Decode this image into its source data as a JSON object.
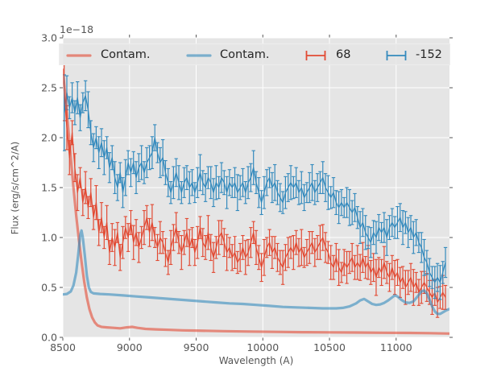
{
  "figure": {
    "plot_bg": "#e5e5e5",
    "grid_color": "#ffffff",
    "tick_color": "#555555",
    "text_color": "#555555",
    "legend_text_color": "#262626"
  },
  "axes": {
    "xlabel": "Wavelength (A)",
    "ylabel": "Flux (erg/s/cm^2/A)",
    "offset_label": "1e−18",
    "x_tick_labels": [
      "8500",
      "9000",
      "9500",
      "10000",
      "10500",
      "11000"
    ],
    "y_tick_labels": [
      "0.0",
      "0.5",
      "1.0",
      "1.5",
      "2.0",
      "2.5",
      "3.0"
    ]
  },
  "legend": {
    "items": [
      {
        "label": "Contam.",
        "kind": "line",
        "color": "#E24A33"
      },
      {
        "label": "Contam.",
        "kind": "line",
        "color": "#348ABD"
      },
      {
        "label": "68",
        "kind": "errorbar",
        "color": "#E24A33"
      },
      {
        "label": "-152",
        "kind": "errorbar",
        "color": "#348ABD"
      }
    ]
  },
  "chart_data": {
    "type": "line",
    "title": "",
    "xlabel": "Wavelength (A)",
    "ylabel": "Flux (erg/s/cm^2/A)",
    "y_offset_factor": "1e-18",
    "xlim": [
      8500,
      11400
    ],
    "ylim": [
      0,
      3
    ],
    "x_ticks": [
      8500,
      9000,
      9500,
      10000,
      10500,
      11000
    ],
    "y_ticks": [
      0.0,
      0.5,
      1.0,
      1.5,
      2.0,
      2.5,
      3.0
    ],
    "grid": true,
    "legend_position": "upper center, horizontal row",
    "series": [
      {
        "name": "Contam.",
        "kind": "line",
        "color": "#E24A33",
        "opacity": 0.6,
        "line_width": 3.2,
        "points": [
          [
            8500,
            2.68
          ],
          [
            8520,
            2.4
          ],
          [
            8540,
            2.1
          ],
          [
            8560,
            1.8
          ],
          [
            8580,
            1.5
          ],
          [
            8600,
            1.22
          ],
          [
            8620,
            0.98
          ],
          [
            8640,
            0.76
          ],
          [
            8660,
            0.56
          ],
          [
            8680,
            0.4
          ],
          [
            8700,
            0.28
          ],
          [
            8720,
            0.2
          ],
          [
            8740,
            0.15
          ],
          [
            8760,
            0.12
          ],
          [
            8790,
            0.105
          ],
          [
            8830,
            0.1
          ],
          [
            8880,
            0.095
          ],
          [
            8930,
            0.09
          ],
          [
            8980,
            0.1
          ],
          [
            9020,
            0.105
          ],
          [
            9060,
            0.095
          ],
          [
            9120,
            0.085
          ],
          [
            9200,
            0.08
          ],
          [
            9300,
            0.075
          ],
          [
            9400,
            0.07
          ],
          [
            9500,
            0.068
          ],
          [
            9700,
            0.062
          ],
          [
            9900,
            0.058
          ],
          [
            10100,
            0.055
          ],
          [
            10300,
            0.052
          ],
          [
            10500,
            0.05
          ],
          [
            10700,
            0.048
          ],
          [
            10900,
            0.046
          ],
          [
            11100,
            0.044
          ],
          [
            11250,
            0.042
          ],
          [
            11400,
            0.038
          ]
        ]
      },
      {
        "name": "Contam.",
        "kind": "line",
        "color": "#348ABD",
        "opacity": 0.6,
        "line_width": 3.2,
        "points": [
          [
            8500,
            0.43
          ],
          [
            8530,
            0.435
          ],
          [
            8560,
            0.46
          ],
          [
            8580,
            0.52
          ],
          [
            8600,
            0.65
          ],
          [
            8615,
            0.82
          ],
          [
            8630,
            1.02
          ],
          [
            8640,
            1.07
          ],
          [
            8650,
            1.0
          ],
          [
            8665,
            0.82
          ],
          [
            8680,
            0.62
          ],
          [
            8695,
            0.5
          ],
          [
            8710,
            0.455
          ],
          [
            8730,
            0.44
          ],
          [
            8780,
            0.435
          ],
          [
            8850,
            0.43
          ],
          [
            8950,
            0.42
          ],
          [
            9050,
            0.41
          ],
          [
            9150,
            0.4
          ],
          [
            9250,
            0.39
          ],
          [
            9350,
            0.38
          ],
          [
            9450,
            0.37
          ],
          [
            9550,
            0.36
          ],
          [
            9650,
            0.35
          ],
          [
            9750,
            0.34
          ],
          [
            9850,
            0.335
          ],
          [
            9950,
            0.325
          ],
          [
            10050,
            0.315
          ],
          [
            10150,
            0.305
          ],
          [
            10250,
            0.3
          ],
          [
            10350,
            0.295
          ],
          [
            10450,
            0.29
          ],
          [
            10550,
            0.29
          ],
          [
            10600,
            0.295
          ],
          [
            10650,
            0.31
          ],
          [
            10700,
            0.34
          ],
          [
            10730,
            0.37
          ],
          [
            10760,
            0.385
          ],
          [
            10790,
            0.36
          ],
          [
            10820,
            0.335
          ],
          [
            10850,
            0.325
          ],
          [
            10880,
            0.33
          ],
          [
            10910,
            0.345
          ],
          [
            10940,
            0.37
          ],
          [
            10970,
            0.4
          ],
          [
            10990,
            0.42
          ],
          [
            11010,
            0.41
          ],
          [
            11040,
            0.375
          ],
          [
            11070,
            0.35
          ],
          [
            11100,
            0.345
          ],
          [
            11130,
            0.36
          ],
          [
            11160,
            0.41
          ],
          [
            11190,
            0.46
          ],
          [
            11210,
            0.47
          ],
          [
            11230,
            0.44
          ],
          [
            11250,
            0.38
          ],
          [
            11270,
            0.31
          ],
          [
            11290,
            0.26
          ],
          [
            11310,
            0.235
          ],
          [
            11330,
            0.235
          ],
          [
            11350,
            0.25
          ],
          [
            11375,
            0.27
          ],
          [
            11400,
            0.285
          ]
        ]
      },
      {
        "name": "68",
        "kind": "errorbar",
        "color": "#E24A33",
        "x_start": 8510,
        "x_step": 20,
        "y": [
          2.45,
          2.1,
          1.8,
          2.05,
          1.7,
          1.45,
          1.6,
          1.35,
          1.5,
          1.3,
          1.45,
          1.2,
          1.35,
          1.05,
          1.2,
          1.0,
          1.15,
          0.85,
          1.0,
          0.9,
          1.05,
          0.8,
          0.95,
          1.1,
          1.0,
          1.15,
          0.95,
          1.05,
          0.9,
          1.0,
          1.1,
          1.2,
          1.05,
          1.15,
          1.0,
          0.9,
          1.0,
          0.95,
          0.85,
          0.75,
          0.9,
          1.0,
          1.1,
          0.95,
          0.85,
          0.95,
          1.05,
          0.9,
          1.0,
          0.85,
          0.95,
          1.1,
          0.95,
          0.9,
          1.05,
          0.9,
          0.8,
          0.9,
          1.0,
          1.05,
          0.95,
          0.85,
          0.9,
          0.8,
          0.85,
          0.75,
          0.8,
          0.9,
          0.8,
          0.85,
          0.95,
          1.05,
          0.9,
          0.8,
          0.7,
          0.8,
          0.9,
          0.95,
          0.85,
          0.9,
          0.8,
          0.75,
          0.7,
          0.8,
          0.85,
          0.9,
          0.85,
          0.95,
          0.85,
          0.9,
          0.8,
          0.85,
          0.9,
          0.95,
          0.85,
          0.9,
          0.95,
          1.0,
          0.9,
          0.85,
          0.75,
          0.7,
          0.8,
          0.7,
          0.65,
          0.75,
          0.7,
          0.75,
          0.8,
          0.7,
          0.75,
          0.7,
          0.8,
          0.7,
          0.75,
          0.65,
          0.7,
          0.6,
          0.7,
          0.65,
          0.75,
          0.65,
          0.6,
          0.7,
          0.6,
          0.65,
          0.55,
          0.6,
          0.5,
          0.55,
          0.6,
          0.5,
          0.55,
          0.45,
          0.5,
          0.55,
          0.5,
          0.45,
          0.4,
          0.45,
          0.35,
          0.4,
          0.45,
          0.4
        ],
        "yerr_pattern": [
          0.15,
          0.11,
          0.17,
          0.12,
          0.14,
          0.18,
          0.1,
          0.13,
          0.16,
          0.11,
          0.14,
          0.12,
          0.17,
          0.13
        ],
        "yerr_overrides": {
          "0": 0.28,
          "1": 0.22
        }
      },
      {
        "name": "-152",
        "kind": "errorbar",
        "color": "#348ABD",
        "x_start": 8510,
        "x_step": 20,
        "y": [
          2.25,
          2.45,
          2.3,
          2.4,
          2.25,
          2.4,
          2.2,
          2.35,
          2.42,
          2.28,
          2.05,
          1.9,
          2.0,
          1.85,
          1.95,
          1.8,
          1.9,
          1.7,
          1.8,
          1.6,
          1.5,
          1.65,
          1.45,
          1.6,
          1.75,
          1.65,
          1.75,
          1.6,
          1.7,
          1.75,
          1.65,
          1.75,
          1.8,
          1.85,
          2.0,
          1.85,
          1.75,
          1.8,
          1.65,
          1.55,
          1.45,
          1.55,
          1.65,
          1.55,
          1.45,
          1.55,
          1.6,
          1.5,
          1.55,
          1.45,
          1.55,
          1.65,
          1.55,
          1.5,
          1.6,
          1.55,
          1.45,
          1.55,
          1.5,
          1.6,
          1.55,
          1.45,
          1.55,
          1.5,
          1.55,
          1.45,
          1.5,
          1.55,
          1.45,
          1.55,
          1.6,
          1.7,
          1.55,
          1.45,
          1.35,
          1.45,
          1.55,
          1.6,
          1.5,
          1.55,
          1.45,
          1.4,
          1.35,
          1.45,
          1.5,
          1.55,
          1.5,
          1.55,
          1.45,
          1.5,
          1.4,
          1.45,
          1.5,
          1.55,
          1.45,
          1.5,
          1.55,
          1.6,
          1.5,
          1.45,
          1.4,
          1.45,
          1.35,
          1.3,
          1.35,
          1.3,
          1.35,
          1.3,
          1.25,
          1.3,
          1.2,
          1.1,
          1.15,
          1.05,
          1.0,
          0.95,
          1.05,
          1.0,
          1.1,
          1.05,
          1.1,
          1.0,
          1.1,
          1.15,
          1.1,
          1.15,
          1.2,
          1.1,
          1.15,
          1.05,
          1.1,
          1.0,
          1.05,
          0.95,
          0.9,
          0.8,
          0.75,
          0.65,
          0.6,
          0.55,
          0.6,
          0.55,
          0.65,
          0.75
        ],
        "yerr_pattern": [
          0.14,
          0.17,
          0.11,
          0.15,
          0.12,
          0.16,
          0.13,
          0.1,
          0.15,
          0.18,
          0.12,
          0.14,
          0.11,
          0.16
        ],
        "yerr_overrides": {
          "0": 0.38
        }
      }
    ]
  }
}
